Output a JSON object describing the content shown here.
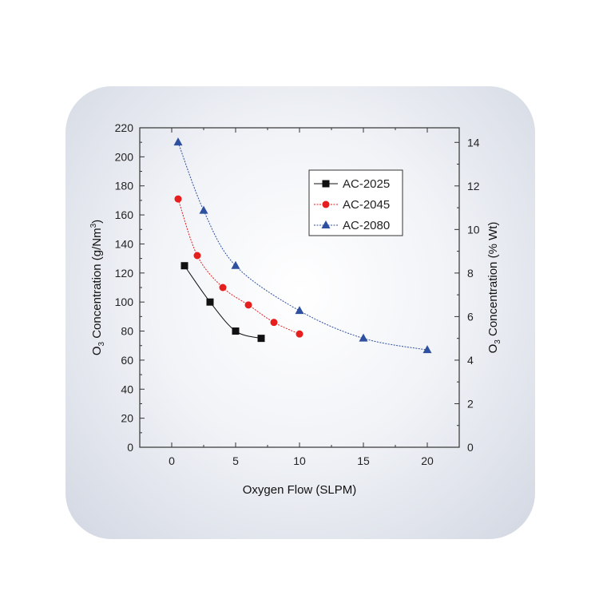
{
  "chart_data": {
    "type": "line",
    "xlabel": "Oxygen Flow (SLPM)",
    "ylabel": {
      "main": "O",
      "sub": "3",
      "rest": " Concentration (g/Nm",
      "sup": "3",
      "end": ")"
    },
    "y2label": {
      "main": "O",
      "sub": "3",
      "rest": " Concentration (% Wt)"
    },
    "xlim": [
      -2.5,
      22.5
    ],
    "ylim": [
      0,
      220
    ],
    "y2lim": [
      0,
      14.67
    ],
    "xticks": [
      "0",
      "5",
      "10",
      "15",
      "20"
    ],
    "xtick_values": [
      0,
      5,
      10,
      15,
      20
    ],
    "yticks": [
      "0",
      "20",
      "40",
      "60",
      "80",
      "100",
      "120",
      "140",
      "160",
      "180",
      "200",
      "220"
    ],
    "ytick_values": [
      0,
      20,
      40,
      60,
      80,
      100,
      120,
      140,
      160,
      180,
      200,
      220
    ],
    "y2ticks": [
      "0",
      "2",
      "4",
      "6",
      "8",
      "10",
      "12",
      "14"
    ],
    "y2tick_values": [
      0,
      2,
      4,
      6,
      8,
      10,
      12,
      14
    ],
    "grid": false,
    "legend_position": "top-right",
    "series": [
      {
        "name": "AC-2025",
        "color": "#111111",
        "marker": "square",
        "x": [
          1,
          3,
          5,
          7
        ],
        "y": [
          125,
          100,
          80,
          75
        ]
      },
      {
        "name": "AC-2045",
        "color": "#e61e1e",
        "marker": "circle",
        "x": [
          0.5,
          2,
          4,
          6,
          8,
          10
        ],
        "y": [
          171,
          132,
          110,
          98,
          86,
          78
        ]
      },
      {
        "name": "AC-2080",
        "color": "#2f4f9f",
        "marker": "triangle",
        "x": [
          0.5,
          2.5,
          5,
          10,
          15,
          20
        ],
        "y": [
          210,
          163,
          125,
          94,
          75,
          67
        ]
      }
    ]
  }
}
